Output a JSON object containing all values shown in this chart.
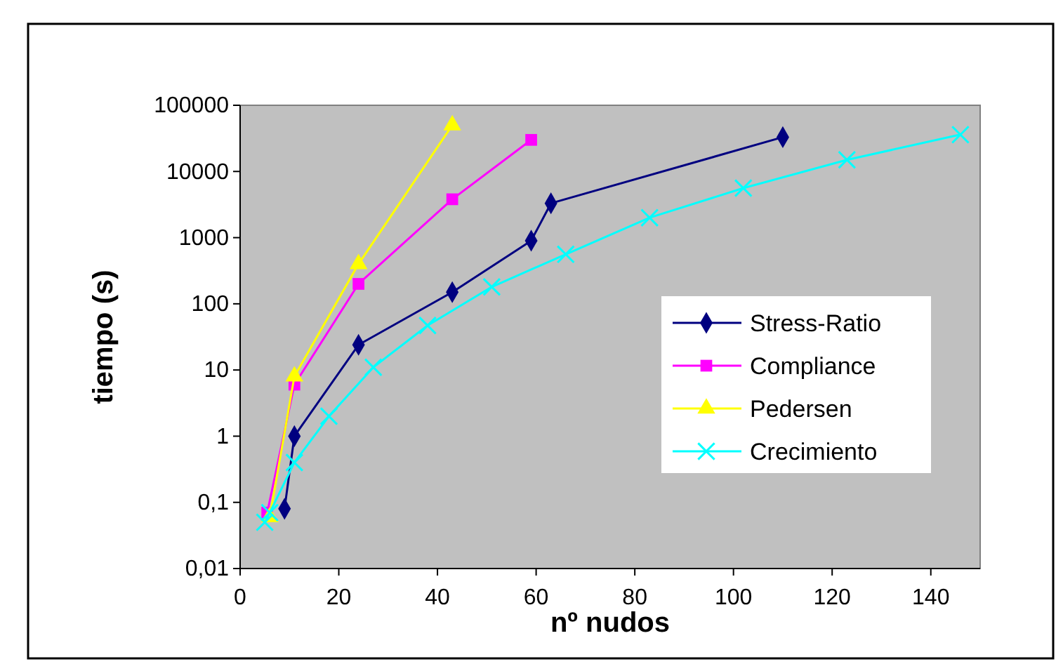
{
  "chart_data": {
    "type": "line",
    "xlabel": "nº nudos",
    "ylabel": "tiempo (s)",
    "log": "y",
    "xlim": [
      0,
      150
    ],
    "xticks": [
      0,
      20,
      40,
      60,
      80,
      100,
      120,
      140
    ],
    "ylim": [
      0.01,
      100000
    ],
    "yticks": [
      {
        "value": 0.01,
        "label": "0,01"
      },
      {
        "value": 0.1,
        "label": "0,1"
      },
      1,
      10,
      100,
      1000,
      10000,
      100000
    ],
    "grid": false,
    "legend": "right",
    "series": [
      {
        "name": "Stress-Ratio",
        "color": "#000080",
        "marker": "diamond",
        "x": [
          9,
          11,
          24,
          43,
          59,
          63,
          110
        ],
        "values": [
          0.08,
          1,
          24,
          150,
          900,
          3300,
          33000
        ]
      },
      {
        "name": "Compliance",
        "color": "#ff00ff",
        "marker": "square",
        "x": [
          5.5,
          11,
          24,
          43,
          59
        ],
        "values": [
          0.07,
          6,
          200,
          3800,
          30000
        ]
      },
      {
        "name": "Pedersen",
        "color": "#ffff00",
        "marker": "triangle",
        "x": [
          6,
          11,
          24,
          43
        ],
        "values": [
          0.06,
          8,
          400,
          50000
        ]
      },
      {
        "name": "Crecimiento",
        "color": "#00ffff",
        "marker": "cross",
        "x": [
          5,
          6,
          11,
          18,
          27,
          38,
          51,
          66,
          83,
          102,
          123,
          146
        ],
        "values": [
          0.05,
          0.07,
          0.4,
          2,
          11,
          47,
          180,
          560,
          2000,
          5600,
          15000,
          36000
        ]
      }
    ]
  }
}
